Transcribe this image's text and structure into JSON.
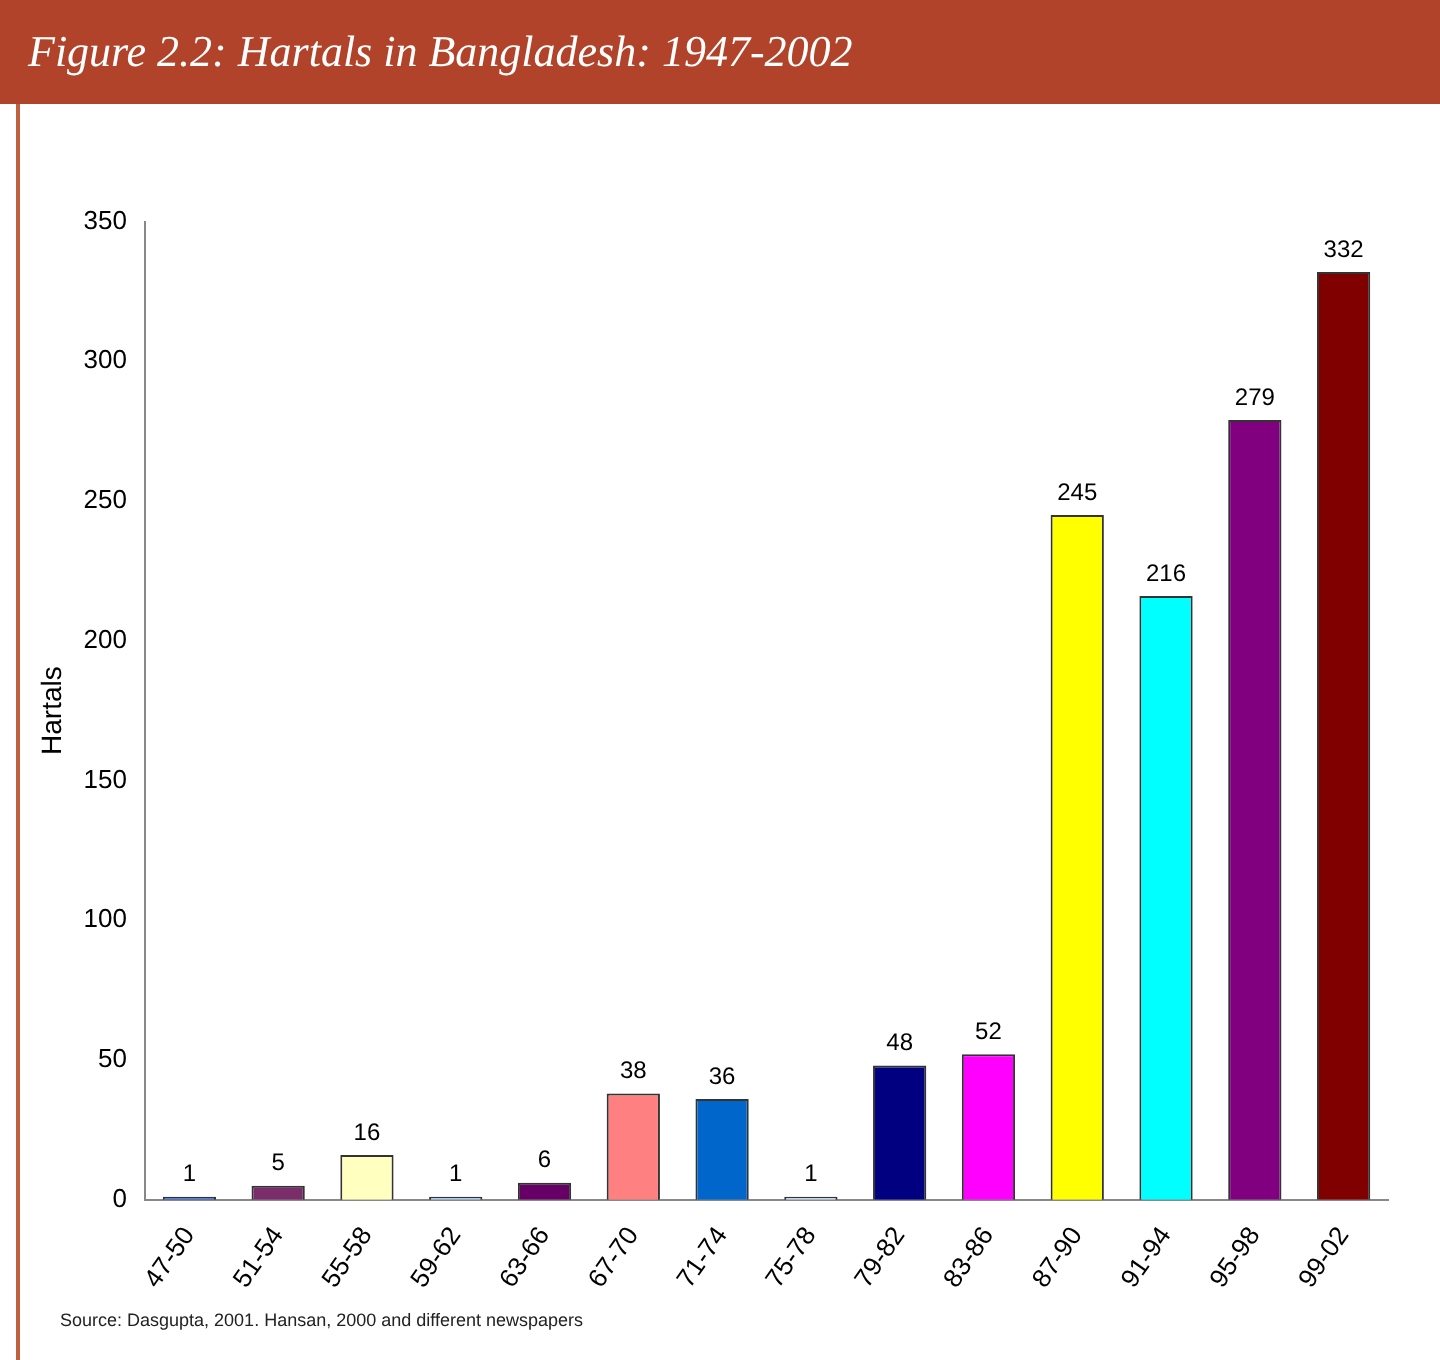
{
  "chart_data": {
    "type": "bar",
    "title": "Figure 2.2: Hartals in Bangladesh: 1947-2002",
    "ylabel": "Hartals",
    "categories": [
      "47-50",
      "51-54",
      "55-58",
      "59-62",
      "63-66",
      "67-70",
      "71-74",
      "75-78",
      "79-82",
      "83-86",
      "87-90",
      "91-94",
      "95-98",
      "99-02"
    ],
    "values": [
      1,
      5,
      16,
      1,
      6,
      38,
      36,
      1,
      48,
      52,
      245,
      216,
      279,
      332
    ],
    "colors": [
      "#3366cc",
      "#7b2d6b",
      "#ffffc0",
      "#a6caf0",
      "#660066",
      "#ff8080",
      "#0066cc",
      "#c0dcf0",
      "#000080",
      "#ff00ff",
      "#ffff00",
      "#00ffff",
      "#800080",
      "#800000"
    ],
    "ylim": [
      0,
      350
    ],
    "yticks": [
      0,
      50,
      100,
      150,
      200,
      250,
      300,
      350
    ],
    "grid": false,
    "data_labels": true,
    "annotations": [
      "Source: Dasgupta, 2001. Hansan, 2000 and different newspapers"
    ]
  }
}
